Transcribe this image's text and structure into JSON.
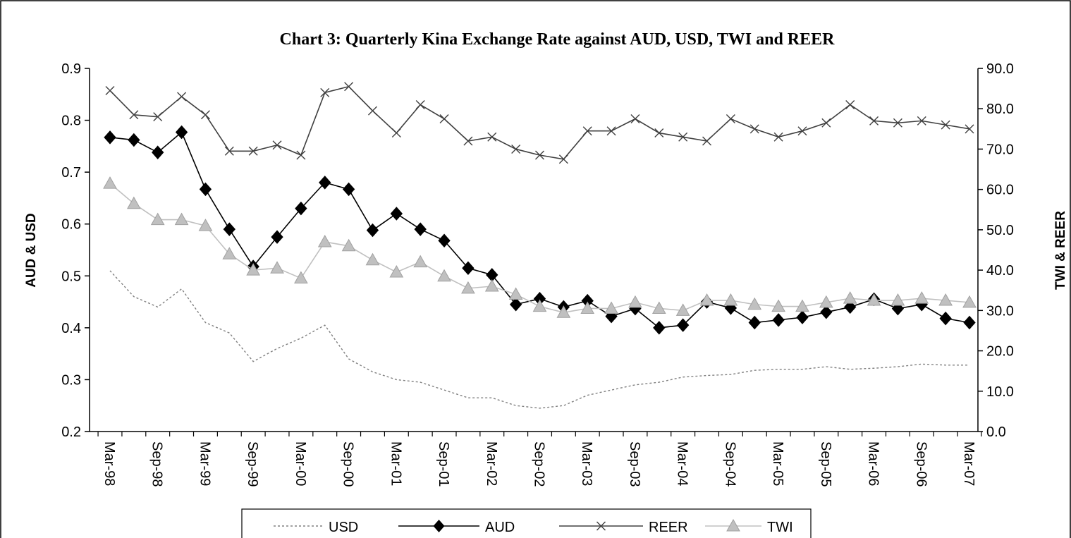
{
  "chart_data": {
    "type": "line",
    "title": "Chart 3: Quarterly Kina Exchange Rate against AUD, USD, TWI and REER",
    "ylabel": "AUD & USD",
    "y2label": "TWI & REER",
    "categories": [
      "Mar-98",
      null,
      "Sep-98",
      null,
      "Mar-99",
      null,
      "Sep-99",
      null,
      "Mar-00",
      null,
      "Sep-00",
      null,
      "Mar-01",
      null,
      "Sep-01",
      null,
      "Mar-02",
      null,
      "Sep-02",
      null,
      "Mar-03",
      null,
      "Sep-03",
      null,
      "Mar-04",
      null,
      "Sep-04",
      null,
      "Mar-05",
      null,
      "Sep-05",
      null,
      "Mar-06",
      null,
      "Sep-06",
      null,
      "Mar-07"
    ],
    "ylim": [
      0.2,
      0.9
    ],
    "yticks": [
      0.2,
      0.3,
      0.4,
      0.5,
      0.6,
      0.7,
      0.8,
      0.9
    ],
    "y2lim": [
      0,
      90
    ],
    "y2ticks": [
      {
        "value": 0,
        "label": "0.0"
      },
      {
        "value": 10,
        "label": "10.0"
      },
      {
        "value": 20,
        "label": "20.0"
      },
      {
        "value": 30,
        "label": "30.0"
      },
      {
        "value": 40,
        "label": "40.0"
      },
      {
        "value": 50,
        "label": "50.0"
      },
      {
        "value": 60,
        "label": "60.0"
      },
      {
        "value": 70,
        "label": "70.0"
      },
      {
        "value": 80,
        "label": "80.0"
      },
      {
        "value": 90,
        "label": "90.0"
      }
    ],
    "series": [
      {
        "name": "USD",
        "color": "#808080",
        "dash": true,
        "marker": "none",
        "values": [
          0.51,
          0.46,
          0.44,
          0.475,
          0.41,
          0.39,
          0.335,
          0.36,
          0.38,
          0.405,
          0.34,
          0.315,
          0.3,
          0.295,
          0.28,
          0.265,
          0.265,
          0.25,
          0.245,
          0.25,
          0.27,
          0.28,
          0.29,
          0.295,
          0.305,
          0.308,
          0.31,
          0.318,
          0.32,
          0.32,
          0.325,
          0.32,
          0.322,
          0.325,
          0.33,
          0.328,
          0.328
        ]
      },
      {
        "name": "AUD",
        "color": "#000000",
        "dash": false,
        "marker": "diamond",
        "values": [
          0.767,
          0.762,
          0.738,
          0.777,
          0.667,
          0.59,
          0.518,
          0.575,
          0.63,
          0.68,
          0.667,
          0.588,
          0.62,
          0.59,
          0.568,
          0.515,
          0.502,
          0.445,
          0.456,
          0.44,
          0.452,
          0.422,
          0.437,
          0.4,
          0.405,
          0.45,
          0.438,
          0.41,
          0.415,
          0.42,
          0.43,
          0.44,
          0.455,
          0.437,
          0.445,
          0.418,
          0.41
        ]
      },
      {
        "name": "REER",
        "color": "#404040",
        "dash": false,
        "marker": "x",
        "axis": "y2",
        "values": [
          84.5,
          78.5,
          78,
          83,
          78.5,
          69.5,
          69.5,
          71,
          68.5,
          84,
          85.5,
          79.5,
          74,
          81,
          77.5,
          72,
          73,
          70,
          68.5,
          67.5,
          74.5,
          74.5,
          77.5,
          74,
          73,
          72,
          77.5,
          75,
          73,
          74.5,
          76.5,
          81,
          77,
          76.5,
          77,
          76,
          75
        ]
      },
      {
        "name": "TWI",
        "color": "#c0c0c0",
        "dash": false,
        "marker": "triangle",
        "axis": "y2",
        "values": [
          61.5,
          56.5,
          52.5,
          52.5,
          51,
          44,
          40,
          40.5,
          38,
          47,
          46,
          42.5,
          39.5,
          42,
          38.5,
          35.5,
          36,
          34,
          31,
          29.5,
          30.5,
          30.5,
          32,
          30.5,
          30,
          32.5,
          32.5,
          31.5,
          31,
          31,
          32,
          33,
          32.5,
          32.5,
          33,
          32.5,
          32
        ]
      }
    ]
  }
}
